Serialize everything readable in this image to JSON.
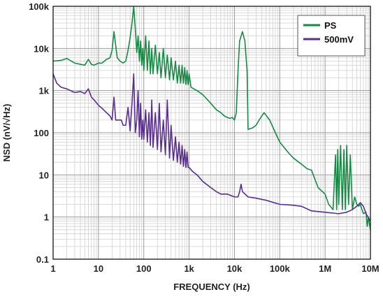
{
  "chart_data": {
    "type": "line",
    "xscale": "log",
    "yscale": "log",
    "xlim": [
      1,
      10000000
    ],
    "ylim": [
      0.1,
      100000
    ],
    "grid": true,
    "legend_position": "top-right",
    "xlabel": "FREQUENCY (Hz)",
    "ylabel": "NSD (nV/√Hz)",
    "x_ticks": [
      {
        "v": 1,
        "label": "1"
      },
      {
        "v": 10,
        "label": "10"
      },
      {
        "v": 100,
        "label": "100"
      },
      {
        "v": 1000,
        "label": "1k"
      },
      {
        "v": 10000,
        "label": "10k"
      },
      {
        "v": 100000,
        "label": "100k"
      },
      {
        "v": 1000000,
        "label": "1M"
      },
      {
        "v": 10000000,
        "label": "10M"
      }
    ],
    "y_ticks": [
      {
        "v": 0.1,
        "label": "0.1"
      },
      {
        "v": 1,
        "label": "1"
      },
      {
        "v": 10,
        "label": "10"
      },
      {
        "v": 100,
        "label": "100"
      },
      {
        "v": 1000,
        "label": "1k"
      },
      {
        "v": 10000,
        "label": "10k"
      },
      {
        "v": 100000,
        "label": "100k"
      }
    ],
    "series": [
      {
        "name": "PS",
        "color": "#178a43",
        "points": [
          [
            1,
            5000
          ],
          [
            1.5,
            5200
          ],
          [
            2,
            5800
          ],
          [
            3,
            4500
          ],
          [
            4,
            4200
          ],
          [
            5,
            4000
          ],
          [
            6,
            5500
          ],
          [
            7,
            4200
          ],
          [
            8,
            4000
          ],
          [
            10,
            4500
          ],
          [
            12,
            4500
          ],
          [
            15,
            5500
          ],
          [
            18,
            6000
          ],
          [
            20,
            9000
          ],
          [
            22,
            25000
          ],
          [
            24,
            12000
          ],
          [
            26,
            6000
          ],
          [
            30,
            5000
          ],
          [
            35,
            4500
          ],
          [
            40,
            5000
          ],
          [
            45,
            9000
          ],
          [
            50,
            18000
          ],
          [
            55,
            40000
          ],
          [
            60,
            100000
          ],
          [
            65,
            30000
          ],
          [
            70,
            8000
          ],
          [
            75,
            20000
          ],
          [
            80,
            5000
          ],
          [
            85,
            15000
          ],
          [
            90,
            4000
          ],
          [
            95,
            10000
          ],
          [
            100,
            3000
          ],
          [
            110,
            20000
          ],
          [
            120,
            3000
          ],
          [
            130,
            15000
          ],
          [
            140,
            2500
          ],
          [
            150,
            10000
          ],
          [
            160,
            2500
          ],
          [
            180,
            12000
          ],
          [
            200,
            2500
          ],
          [
            220,
            8000
          ],
          [
            240,
            2000
          ],
          [
            270,
            10000
          ],
          [
            300,
            2000
          ],
          [
            330,
            7000
          ],
          [
            370,
            1800
          ],
          [
            400,
            6000
          ],
          [
            450,
            1800
          ],
          [
            500,
            5000
          ],
          [
            550,
            1500
          ],
          [
            600,
            4000
          ],
          [
            650,
            1500
          ],
          [
            700,
            4000
          ],
          [
            750,
            1500
          ],
          [
            800,
            3500
          ],
          [
            850,
            1400
          ],
          [
            900,
            3000
          ],
          [
            950,
            1400
          ],
          [
            1000,
            2500
          ],
          [
            1100,
            1200
          ],
          [
            1500,
            1000
          ],
          [
            2000,
            800
          ],
          [
            3000,
            500
          ],
          [
            4000,
            350
          ],
          [
            5000,
            300
          ],
          [
            6000,
            250
          ],
          [
            7000,
            230
          ],
          [
            8000,
            220
          ],
          [
            9000,
            230
          ],
          [
            10000,
            200
          ],
          [
            11000,
            300
          ],
          [
            12000,
            3000
          ],
          [
            13000,
            15000
          ],
          [
            15000,
            25000
          ],
          [
            17000,
            15000
          ],
          [
            19000,
            3000
          ],
          [
            20000,
            120
          ],
          [
            25000,
            130
          ],
          [
            30000,
            150
          ],
          [
            35000,
            200
          ],
          [
            45000,
            300
          ],
          [
            60000,
            200
          ],
          [
            80000,
            100
          ],
          [
            100000,
            60
          ],
          [
            150000,
            35
          ],
          [
            200000,
            25
          ],
          [
            300000,
            18
          ],
          [
            400000,
            14
          ],
          [
            500000,
            13
          ],
          [
            700000,
            5
          ],
          [
            1000000,
            3.5
          ],
          [
            1200000,
            2
          ],
          [
            1500000,
            1.5
          ],
          [
            1700000,
            30
          ],
          [
            1800000,
            1.5
          ],
          [
            1900000,
            40
          ],
          [
            2000000,
            2
          ],
          [
            2200000,
            50
          ],
          [
            2400000,
            1.5
          ],
          [
            2600000,
            40
          ],
          [
            2800000,
            1.5
          ],
          [
            3000000,
            50
          ],
          [
            3300000,
            2
          ],
          [
            3600000,
            30
          ],
          [
            4000000,
            1.5
          ],
          [
            4500000,
            3
          ],
          [
            5000000,
            2
          ],
          [
            5500000,
            1.8
          ],
          [
            6000000,
            2
          ],
          [
            6500000,
            1.5
          ],
          [
            7000000,
            1.2
          ],
          [
            8000000,
            1.3
          ],
          [
            8500000,
            0.6
          ],
          [
            9000000,
            1
          ],
          [
            10000000,
            0.5
          ]
        ]
      },
      {
        "name": "500mV",
        "color": "#5a2d91",
        "points": [
          [
            1,
            2500
          ],
          [
            1.2,
            1500
          ],
          [
            1.5,
            1200
          ],
          [
            2,
            1100
          ],
          [
            3,
            900
          ],
          [
            4,
            950
          ],
          [
            5,
            850
          ],
          [
            6,
            1100
          ],
          [
            7,
            700
          ],
          [
            8,
            600
          ],
          [
            10,
            450
          ],
          [
            12,
            380
          ],
          [
            15,
            300
          ],
          [
            18,
            250
          ],
          [
            20,
            200
          ],
          [
            22,
            700
          ],
          [
            24,
            200
          ],
          [
            28,
            200
          ],
          [
            32,
            200
          ],
          [
            35,
            150
          ],
          [
            40,
            150
          ],
          [
            45,
            400
          ],
          [
            50,
            110
          ],
          [
            55,
            500
          ],
          [
            60,
            2500
          ],
          [
            65,
            100
          ],
          [
            70,
            200
          ],
          [
            75,
            1000
          ],
          [
            80,
            80
          ],
          [
            85,
            500
          ],
          [
            90,
            70
          ],
          [
            95,
            200
          ],
          [
            100,
            70
          ],
          [
            110,
            350
          ],
          [
            120,
            60
          ],
          [
            130,
            300
          ],
          [
            140,
            50
          ],
          [
            150,
            600
          ],
          [
            160,
            45
          ],
          [
            180,
            300
          ],
          [
            200,
            40
          ],
          [
            220,
            500
          ],
          [
            240,
            35
          ],
          [
            270,
            200
          ],
          [
            300,
            30
          ],
          [
            330,
            600
          ],
          [
            370,
            25
          ],
          [
            400,
            150
          ],
          [
            450,
            22
          ],
          [
            500,
            80
          ],
          [
            550,
            20
          ],
          [
            600,
            60
          ],
          [
            650,
            18
          ],
          [
            700,
            50
          ],
          [
            750,
            16
          ],
          [
            800,
            40
          ],
          [
            850,
            15
          ],
          [
            900,
            35
          ],
          [
            950,
            15
          ],
          [
            1000,
            15
          ],
          [
            1200,
            12
          ],
          [
            1500,
            10
          ],
          [
            2000,
            7
          ],
          [
            3000,
            5
          ],
          [
            4000,
            4
          ],
          [
            5000,
            3.5
          ],
          [
            7000,
            3.5
          ],
          [
            10000,
            3
          ],
          [
            12000,
            3
          ],
          [
            13000,
            4
          ],
          [
            14000,
            6
          ],
          [
            15000,
            4
          ],
          [
            20000,
            3
          ],
          [
            30000,
            2.8
          ],
          [
            50000,
            2.5
          ],
          [
            100000,
            2
          ],
          [
            200000,
            1.9
          ],
          [
            300000,
            1.8
          ],
          [
            500000,
            1.4
          ],
          [
            700000,
            1.35
          ],
          [
            1000000,
            1.3
          ],
          [
            2000000,
            1.2
          ],
          [
            3000000,
            1.3
          ],
          [
            4000000,
            1.5
          ],
          [
            5000000,
            1.8
          ],
          [
            6000000,
            2.2
          ],
          [
            7000000,
            1.8
          ],
          [
            8000000,
            1.2
          ],
          [
            10000000,
            0.8
          ]
        ]
      }
    ]
  }
}
